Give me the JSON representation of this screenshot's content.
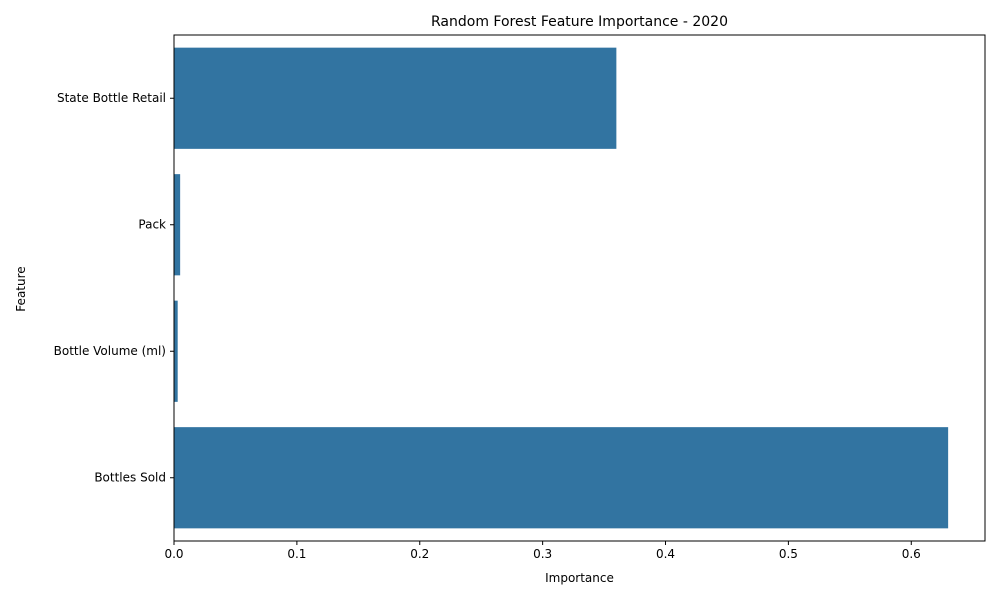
{
  "chart_data": {
    "type": "bar",
    "orientation": "horizontal",
    "title": "Random Forest Feature Importance - 2020",
    "xlabel": "Importance",
    "ylabel": "Feature",
    "categories": [
      "State Bottle Retail",
      "Pack",
      "Bottle Volume (ml)",
      "Bottles Sold"
    ],
    "values": [
      0.36,
      0.005,
      0.003,
      0.63
    ],
    "xlim": [
      0,
      0.66
    ],
    "xticks": [
      0.0,
      0.1,
      0.2,
      0.3,
      0.4,
      0.5,
      0.6
    ],
    "xtick_labels": [
      "0.0",
      "0.1",
      "0.2",
      "0.3",
      "0.4",
      "0.5",
      "0.6"
    ],
    "grid": false,
    "bar_color": "#3274a1"
  }
}
